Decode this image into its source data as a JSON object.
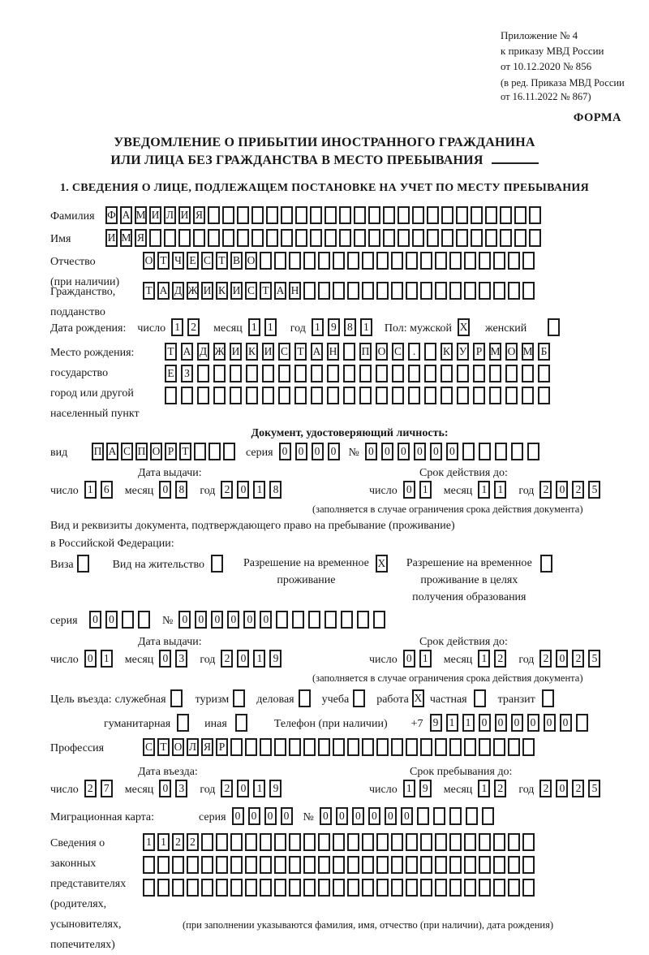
{
  "header": {
    "appendix": [
      "Приложение № 4",
      "к приказу МВД России",
      "от 10.12.2020 № 856"
    ],
    "edition": [
      "(в ред. Приказа МВД России",
      "от 16.11.2022 № 867)"
    ],
    "forma": "ФОРМА",
    "title_line1": "УВЕДОМЛЕНИЕ О ПРИБЫТИИ ИНОСТРАННОГО ГРАЖДАНИНА",
    "title_line2": "ИЛИ ЛИЦА БЕЗ ГРАЖДАНСТВА В МЕСТО ПРЕБЫВАНИЯ",
    "section1": "1. СВЕДЕНИЯ О ЛИЦЕ, ПОДЛЕЖАЩЕМ ПОСТАНОВКЕ НА УЧЕТ ПО МЕСТУ ПРЕБЫВАНИЯ"
  },
  "common": {
    "series": "серия",
    "number": "№",
    "day": "число",
    "month": "месяц",
    "year": "год",
    "issue_date": "Дата выдачи:",
    "valid_until": "Срок действия до:",
    "limit_note": "(заполняется в случае ограничения срока действия документа)"
  },
  "person": {
    "surname_label": "Фамилия",
    "surname": {
      "text": "ФАМИЛИЯ",
      "len": 30
    },
    "name_label": "Имя",
    "name": {
      "text": "ИМЯ",
      "len": 30
    },
    "patronymic_label": "Отчество",
    "patronymic_note": "(при наличии)",
    "patronymic": {
      "text": "ОТЧЕСТВО",
      "len": 27
    },
    "citizenship_label1": "Гражданство,",
    "citizenship_label2": "подданство",
    "citizenship": {
      "text": "ТАДЖИКИСТАН",
      "len": 27
    }
  },
  "birth": {
    "date_label": "Дата рождения:",
    "day": {
      "text": "12",
      "len": 2
    },
    "month": {
      "text": "11",
      "len": 2
    },
    "year": {
      "text": "1981",
      "len": 4
    },
    "sex_label": "Пол: мужской",
    "male_check": {
      "text": "X",
      "len": 1
    },
    "female_label": "женский",
    "female_check": {
      "text": "",
      "len": 1
    },
    "place_label": "Место рождения:",
    "place_sub1": "государство",
    "place_sub2": "город или другой",
    "place_sub3": "населенный пункт",
    "place_row1": {
      "text": "ТАДЖИКИСТАН ПОС. КУРМОМБ",
      "len": 24
    },
    "place_row2": {
      "text": "ЕЗ",
      "len": 24
    },
    "place_row3": {
      "text": "",
      "len": 24
    }
  },
  "id_doc": {
    "header": "Документ, удостоверяющий личность:",
    "kind_label": "вид",
    "kind": {
      "text": "ПАСПОРТ",
      "len": 10
    },
    "series": {
      "text": "0000",
      "len": 4
    },
    "number": {
      "text": "000000",
      "len": 11
    },
    "issue_day": {
      "text": "16",
      "len": 2
    },
    "issue_month": {
      "text": "08",
      "len": 2
    },
    "issue_year": {
      "text": "2018",
      "len": 4
    },
    "exp_day": {
      "text": "01",
      "len": 2
    },
    "exp_month": {
      "text": "11",
      "len": 2
    },
    "exp_year": {
      "text": "2025",
      "len": 4
    }
  },
  "resdoc": {
    "intro1": "Вид и реквизиты документа, подтверждающего право на пребывание (проживание)",
    "intro2": "в Российской Федерации:",
    "visa_label": "Виза",
    "visa_check": {
      "text": "",
      "len": 1
    },
    "permit_label": "Вид на жительство",
    "permit_check": {
      "text": "",
      "len": 1
    },
    "rvp_line1": "Разрешение на временное",
    "rvp_line2": "проживание",
    "rvp_check": {
      "text": "X",
      "len": 1
    },
    "rvp_edu_line1": "Разрешение на временное",
    "rvp_edu_line2": "проживание в целях",
    "rvp_edu_line3": "получения образования",
    "rvp_edu_check": {
      "text": "",
      "len": 1
    },
    "series": {
      "text": "00",
      "len": 4
    },
    "number": {
      "text": "000000",
      "len": 13
    },
    "issue_day": {
      "text": "01",
      "len": 2
    },
    "issue_month": {
      "text": "03",
      "len": 2
    },
    "issue_year": {
      "text": "2019",
      "len": 4
    },
    "exp_day": {
      "text": "01",
      "len": 2
    },
    "exp_month": {
      "text": "12",
      "len": 2
    },
    "exp_year": {
      "text": "2025",
      "len": 4
    }
  },
  "visit": {
    "purpose_label": "Цель въезда:",
    "opt_official": "служебная",
    "official_check": {
      "text": "",
      "len": 1
    },
    "opt_tourism": "туризм",
    "tourism_check": {
      "text": "",
      "len": 1
    },
    "opt_business": "деловая",
    "business_check": {
      "text": "",
      "len": 1
    },
    "opt_study": "учеба",
    "study_check": {
      "text": "",
      "len": 1
    },
    "opt_work": "работа",
    "work_check": {
      "text": "X",
      "len": 1
    },
    "opt_private": "частная",
    "private_check": {
      "text": "",
      "len": 1
    },
    "opt_transit": "транзит",
    "transit_check": {
      "text": "",
      "len": 1
    },
    "opt_humanitarian": "гуманитарная",
    "humanitarian_check": {
      "text": "",
      "len": 1
    },
    "opt_other": "иная",
    "other_check": {
      "text": "",
      "len": 1
    },
    "phone_label": "Телефон (при наличии)",
    "phone_prefix": "+7",
    "phone": {
      "text": "911000000",
      "len": 10
    },
    "profession_label": "Профессия",
    "profession": {
      "text": "СТОЛЯР",
      "len": 27
    },
    "entry_date_label": "Дата въезда:",
    "entry_day": {
      "text": "27",
      "len": 2
    },
    "entry_month": {
      "text": "03",
      "len": 2
    },
    "entry_year": {
      "text": "2019",
      "len": 4
    },
    "stay_until_label": "Срок пребывания до:",
    "stay_day": {
      "text": "19",
      "len": 2
    },
    "stay_month": {
      "text": "12",
      "len": 2
    },
    "stay_year": {
      "text": "2025",
      "len": 4
    },
    "migration_card_label": "Миграционная карта:",
    "mc_series": {
      "text": "0000",
      "len": 4
    },
    "mc_number": {
      "text": "000000",
      "len": 11
    }
  },
  "reps": {
    "label_lines": [
      "Сведения о",
      "законных",
      "представителях",
      "(родителях,",
      "усыновителях,",
      "попечителях)"
    ],
    "row1": {
      "text": "1122",
      "len": 27
    },
    "row2": {
      "text": "",
      "len": 27
    },
    "row3": {
      "text": "",
      "len": 27
    },
    "note": "(при заполнении указываются фамилия, имя, отчество (при наличии), дата рождения)"
  }
}
